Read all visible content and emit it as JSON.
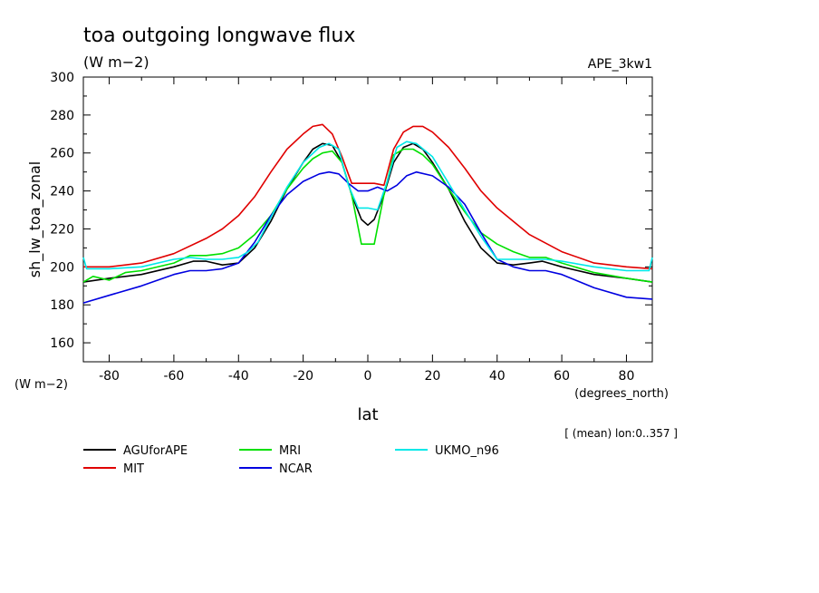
{
  "chart_data": {
    "type": "line",
    "title": "toa outgoing longwave flux",
    "units": "(W m−2)",
    "dataset_label": "APE_3kw1",
    "ylabel": "sh_lw_toa_zonal",
    "y_units": "(W m−2)",
    "xlabel": "lat",
    "x_units": "(degrees_north)",
    "note": "[ (mean) lon:0..357 ]",
    "xlim": [
      -88,
      88
    ],
    "ylim": [
      150,
      300
    ],
    "x_ticks": [
      -80,
      -60,
      -40,
      -20,
      0,
      20,
      40,
      60,
      80
    ],
    "y_ticks": [
      160,
      180,
      200,
      220,
      240,
      260,
      280,
      300
    ],
    "grid": false,
    "legend_position": "bottom-left",
    "series": [
      {
        "name": "AGUforAPE",
        "color": "#000000",
        "x": [
          -88,
          -80,
          -70,
          -60,
          -54,
          -50,
          -45,
          -40,
          -35,
          -30,
          -25,
          -20,
          -17,
          -14,
          -11,
          -8,
          -5,
          -2,
          0,
          2,
          5,
          8,
          11,
          14,
          17,
          20,
          25,
          30,
          35,
          40,
          45,
          50,
          54,
          60,
          70,
          80,
          88
        ],
        "y": [
          192,
          194,
          196,
          200,
          203,
          203,
          201,
          202,
          210,
          224,
          241,
          255,
          262,
          265,
          264,
          255,
          238,
          225,
          222,
          225,
          238,
          255,
          263,
          265,
          262,
          255,
          241,
          224,
          210,
          202,
          201,
          202,
          203,
          200,
          196,
          194,
          192
        ]
      },
      {
        "name": "MIT",
        "color": "#e00000",
        "x": [
          -88,
          -80,
          -70,
          -60,
          -50,
          -45,
          -40,
          -35,
          -30,
          -25,
          -20,
          -17,
          -14,
          -11,
          -8,
          -5,
          -2,
          0,
          2,
          5,
          8,
          11,
          14,
          17,
          20,
          25,
          30,
          35,
          40,
          45,
          50,
          60,
          70,
          80,
          88
        ],
        "y": [
          200,
          200,
          202,
          207,
          215,
          220,
          227,
          237,
          250,
          262,
          270,
          274,
          275,
          270,
          258,
          244,
          244,
          244,
          244,
          243,
          262,
          271,
          274,
          274,
          271,
          263,
          252,
          240,
          231,
          224,
          217,
          208,
          202,
          200,
          199
        ]
      },
      {
        "name": "MRI",
        "color": "#00e000",
        "x": [
          -88,
          -85,
          -80,
          -75,
          -70,
          -60,
          -55,
          -50,
          -45,
          -40,
          -35,
          -30,
          -25,
          -20,
          -17,
          -14,
          -11,
          -8,
          -5,
          -2,
          0,
          2,
          5,
          8,
          11,
          14,
          17,
          20,
          25,
          30,
          35,
          40,
          45,
          50,
          55,
          60,
          70,
          80,
          88
        ],
        "y": [
          192,
          195,
          193,
          197,
          198,
          202,
          206,
          206,
          207,
          210,
          217,
          227,
          241,
          252,
          257,
          260,
          261,
          255,
          238,
          212,
          212,
          212,
          238,
          259,
          262,
          262,
          259,
          254,
          241,
          229,
          218,
          212,
          208,
          205,
          205,
          202,
          197,
          194,
          192
        ]
      },
      {
        "name": "NCAR",
        "color": "#0000e0",
        "x": [
          -88,
          -80,
          -70,
          -60,
          -55,
          -50,
          -45,
          -40,
          -35,
          -30,
          -25,
          -20,
          -15,
          -12,
          -9,
          -6,
          -3,
          0,
          3,
          6,
          9,
          12,
          15,
          20,
          25,
          30,
          35,
          40,
          45,
          50,
          55,
          60,
          70,
          80,
          88
        ],
        "y": [
          181,
          185,
          190,
          196,
          198,
          198,
          199,
          202,
          213,
          227,
          238,
          245,
          249,
          250,
          249,
          244,
          240,
          240,
          242,
          240,
          243,
          248,
          250,
          248,
          242,
          233,
          218,
          204,
          200,
          198,
          198,
          196,
          189,
          184,
          183
        ]
      },
      {
        "name": "UKMO_n96",
        "color": "#00e8e8",
        "x": [
          -88,
          -87,
          -80,
          -70,
          -60,
          -55,
          -50,
          -45,
          -40,
          -37,
          -34,
          -30,
          -25,
          -20,
          -15,
          -12,
          -9,
          -6,
          -3,
          0,
          3,
          6,
          9,
          12,
          15,
          20,
          25,
          30,
          35,
          40,
          45,
          50,
          55,
          60,
          70,
          80,
          87,
          88
        ],
        "y": [
          205,
          199,
          199,
          200,
          204,
          205,
          204,
          204,
          205,
          208,
          213,
          226,
          242,
          255,
          263,
          265,
          262,
          243,
          231,
          231,
          230,
          245,
          263,
          266,
          265,
          258,
          244,
          230,
          216,
          204,
          204,
          204,
          204,
          203,
          200,
          198,
          198,
          205
        ]
      }
    ]
  }
}
